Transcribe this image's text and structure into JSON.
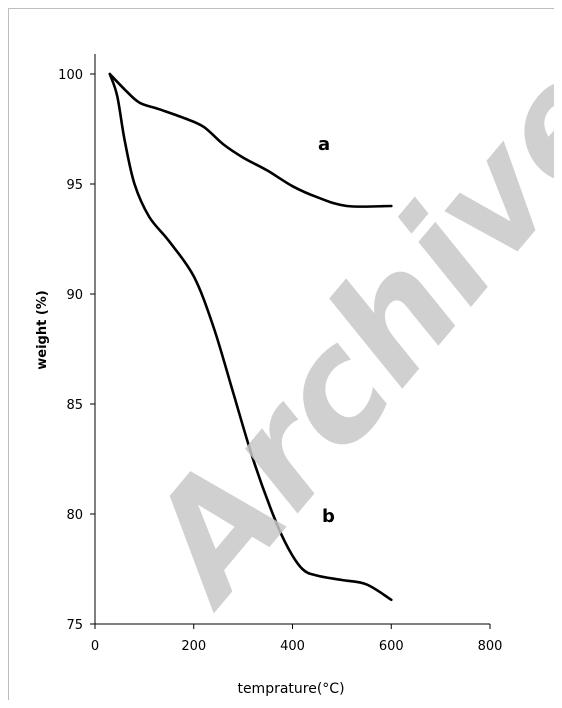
{
  "chart_data": {
    "type": "line",
    "xlabel": "temprature(°C)",
    "ylabel": "weight (%)",
    "xlim": [
      0,
      800
    ],
    "ylim": [
      75,
      100
    ],
    "x_ticks": [
      0,
      200,
      400,
      600,
      800
    ],
    "y_ticks": [
      75,
      80,
      85,
      90,
      95,
      100
    ],
    "grid": false,
    "watermark": "Archive",
    "series": [
      {
        "name": "a",
        "color": "#000000",
        "points": [
          [
            30,
            100
          ],
          [
            60,
            99.3
          ],
          [
            90,
            98.7
          ],
          [
            130,
            98.4
          ],
          [
            180,
            98.0
          ],
          [
            220,
            97.6
          ],
          [
            260,
            96.8
          ],
          [
            300,
            96.2
          ],
          [
            350,
            95.6
          ],
          [
            400,
            94.9
          ],
          [
            450,
            94.4
          ],
          [
            510,
            94.0
          ],
          [
            600,
            94.0
          ]
        ]
      },
      {
        "name": "b",
        "color": "#000000",
        "points": [
          [
            30,
            100
          ],
          [
            45,
            99.0
          ],
          [
            60,
            97.0
          ],
          [
            80,
            95.0
          ],
          [
            110,
            93.5
          ],
          [
            150,
            92.4
          ],
          [
            200,
            90.8
          ],
          [
            240,
            88.5
          ],
          [
            280,
            85.5
          ],
          [
            320,
            82.5
          ],
          [
            360,
            80.0
          ],
          [
            390,
            78.5
          ],
          [
            420,
            77.5
          ],
          [
            450,
            77.2
          ],
          [
            500,
            77.0
          ],
          [
            550,
            76.8
          ],
          [
            600,
            76.1
          ]
        ]
      }
    ]
  }
}
